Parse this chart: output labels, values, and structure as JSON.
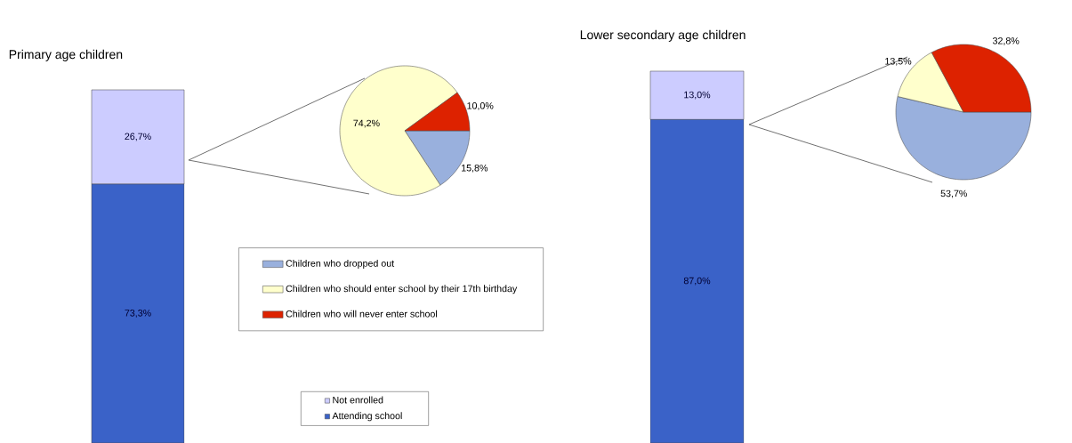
{
  "chart_data": [
    {
      "type": "bar",
      "stacked": true,
      "title": "Primary age children",
      "categories": [
        null
      ],
      "legend": "bottom right",
      "series": [
        {
          "name": "Attending school",
          "color": "#3a62c8",
          "values": [
            73.3
          ],
          "value_labels": [
            "73,3%"
          ]
        },
        {
          "name": "Not enrolled",
          "color": "#ccccff",
          "values": [
            26.7
          ],
          "value_labels": [
            "26,7%"
          ]
        }
      ]
    },
    {
      "type": "pie",
      "legend": "bottom left",
      "categories": [
        "Children who dropped out",
        "Children who should enter school by their 17th birthday",
        "Children who will never enter school"
      ],
      "values": [
        15.8,
        74.2,
        10.0
      ],
      "colors": [
        "#99b0dd",
        "#ffffcc",
        "#dd2200"
      ],
      "value_labels": [
        "15,8%",
        "74,2%",
        "10,0%"
      ]
    },
    {
      "type": "bar",
      "stacked": true,
      "title": "Lower secondary age children",
      "categories": [
        null
      ],
      "series": [
        {
          "color": "#3a62c8",
          "values": [
            87.0
          ],
          "value_labels": [
            "87,0%"
          ]
        },
        {
          "color": "#ccccff",
          "values": [
            13.0
          ],
          "value_labels": [
            "13,0%"
          ]
        }
      ]
    },
    {
      "type": "pie",
      "categories": [
        null,
        null,
        null
      ],
      "values": [
        53.7,
        13.5,
        32.8
      ],
      "colors": [
        "#99b0dd",
        "#ffffcc",
        "#dd2200"
      ],
      "value_labels": [
        "53,7%",
        "13,5%",
        "32,8%"
      ]
    }
  ]
}
